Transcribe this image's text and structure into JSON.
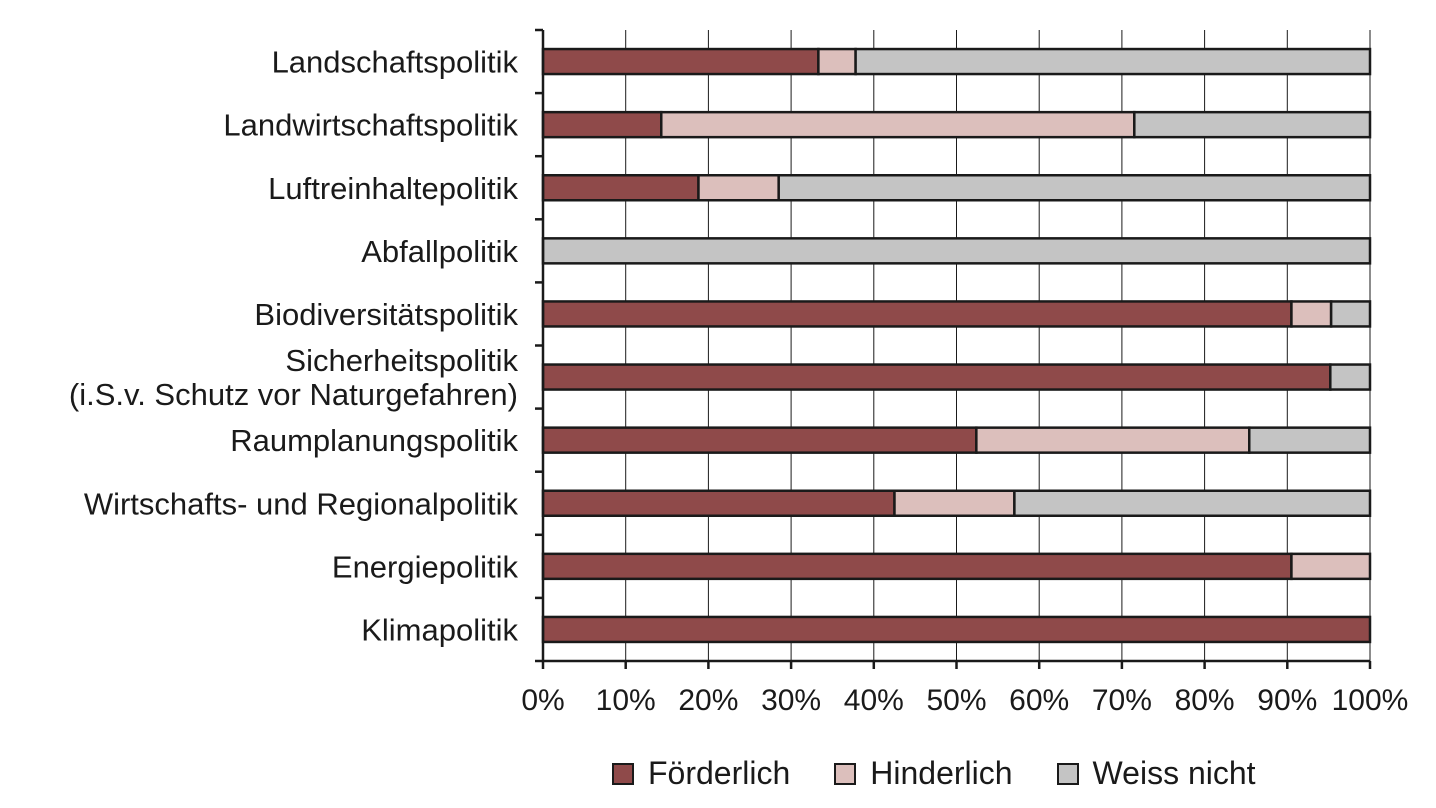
{
  "chart_data": {
    "type": "bar",
    "orientation": "horizontal",
    "stacked": true,
    "categories": [
      [
        "Landschaftspolitik"
      ],
      [
        "Landwirtschaftspolitik"
      ],
      [
        "Luftreinhaltepolitik"
      ],
      [
        "Abfallpolitik"
      ],
      [
        "Biodiversitätspolitik"
      ],
      [
        "Sicherheitspolitik",
        "(i.S.v. Schutz vor Naturgefahren)"
      ],
      [
        "Raumplanungspolitik"
      ],
      [
        "Wirtschafts- und Regionalpolitik"
      ],
      [
        "Energiepolitik"
      ],
      [
        "Klimapolitik"
      ]
    ],
    "series": [
      {
        "name": "Förderlich",
        "color": "#8f4a4a",
        "values": [
          33.3,
          14.3,
          18.8,
          0,
          90.5,
          95.2,
          52.4,
          42.5,
          90.5,
          100
        ]
      },
      {
        "name": "Hinderlich",
        "color": "#dcbfbc",
        "values": [
          4.5,
          57.2,
          9.7,
          0,
          4.8,
          0,
          33.0,
          14.5,
          9.5,
          0
        ]
      },
      {
        "name": "Weiss nicht",
        "color": "#c4c4c4",
        "values": [
          62.2,
          28.5,
          71.5,
          100,
          4.7,
          4.8,
          14.6,
          43.0,
          0,
          0
        ]
      }
    ],
    "xticks": [
      "0%",
      "10%",
      "20%",
      "30%",
      "40%",
      "50%",
      "60%",
      "70%",
      "80%",
      "90%",
      "100%"
    ],
    "xlim": [
      0,
      100
    ],
    "grid": "vertical",
    "legend_position": "bottom"
  }
}
